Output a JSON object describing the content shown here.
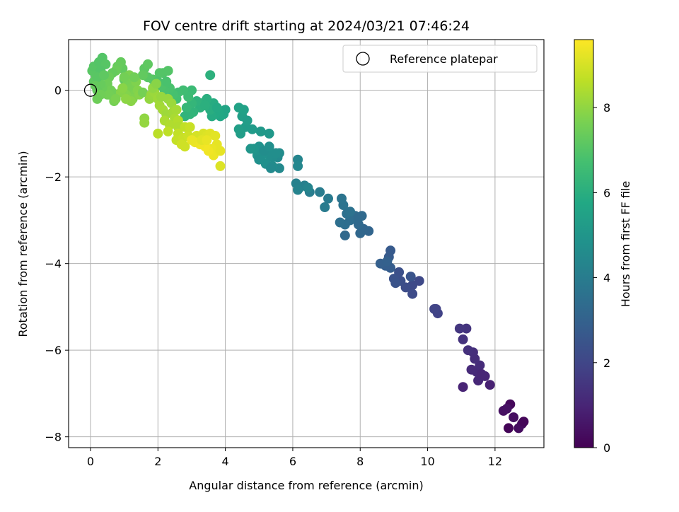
{
  "chart_data": {
    "type": "scatter",
    "title": "FOV centre drift starting at 2024/03/21 07:46:24",
    "xlabel": "Angular distance from reference (arcmin)",
    "ylabel": "Rotation from reference (arcmin)",
    "xlim": [
      -0.65,
      13.45
    ],
    "ylim": [
      -8.25,
      1.17
    ],
    "xticks": [
      "0",
      "2",
      "4",
      "6",
      "8",
      "10",
      "12"
    ],
    "yticks": [
      "−8",
      "−6",
      "−4",
      "−2",
      "0"
    ],
    "grid": true,
    "colormap": "viridis",
    "colorbar": {
      "label": "Hours from first FF file",
      "range": [
        0,
        9.6
      ],
      "ticks": [
        "0",
        "2",
        "4",
        "6",
        "8"
      ]
    },
    "legend": {
      "placement": "top-right",
      "entries": [
        {
          "label": "Reference platepar",
          "marker": "open-circle"
        }
      ]
    },
    "reference_point": {
      "x": 0,
      "y": 0
    },
    "points": [
      [
        12.45,
        -7.25,
        0.2
      ],
      [
        12.8,
        -7.7,
        0.25
      ],
      [
        12.7,
        -7.8,
        0.3
      ],
      [
        12.4,
        -7.8,
        0.1
      ],
      [
        12.55,
        -7.55,
        0.35
      ],
      [
        12.25,
        -7.4,
        0.4
      ],
      [
        12.85,
        -7.65,
        0.15
      ],
      [
        12.35,
        -7.35,
        0.45
      ],
      [
        11.85,
        -6.8,
        0.9
      ],
      [
        11.7,
        -6.6,
        1.0
      ],
      [
        11.5,
        -6.7,
        1.05
      ],
      [
        11.45,
        -6.5,
        1.1
      ],
      [
        11.3,
        -6.45,
        1.15
      ],
      [
        11.55,
        -6.35,
        1.2
      ],
      [
        11.4,
        -6.2,
        1.25
      ],
      [
        11.35,
        -6.05,
        1.3
      ],
      [
        11.2,
        -6.0,
        1.35
      ],
      [
        11.05,
        -5.75,
        1.4
      ],
      [
        11.15,
        -5.5,
        1.45
      ],
      [
        10.95,
        -5.5,
        1.5
      ],
      [
        11.05,
        -6.85,
        0.95
      ],
      [
        11.6,
        -6.55,
        1.02
      ],
      [
        10.25,
        -5.05,
        1.85
      ],
      [
        10.3,
        -5.15,
        1.9
      ],
      [
        10.2,
        -5.05,
        1.95
      ],
      [
        9.75,
        -4.4,
        2.1
      ],
      [
        9.55,
        -4.5,
        2.15
      ],
      [
        9.55,
        -4.7,
        2.2
      ],
      [
        9.35,
        -4.55,
        2.25
      ],
      [
        9.2,
        -4.4,
        2.3
      ],
      [
        9.15,
        -4.2,
        2.35
      ],
      [
        9.0,
        -4.35,
        2.4
      ],
      [
        9.05,
        -4.45,
        2.45
      ],
      [
        9.5,
        -4.3,
        2.5
      ],
      [
        8.9,
        -3.7,
        2.7
      ],
      [
        8.85,
        -3.85,
        2.75
      ],
      [
        8.9,
        -4.1,
        2.8
      ],
      [
        8.75,
        -4.05,
        2.85
      ],
      [
        8.6,
        -4.0,
        2.9
      ],
      [
        8.8,
        -3.95,
        2.95
      ],
      [
        8.25,
        -3.25,
        3.1
      ],
      [
        8.1,
        -3.2,
        3.15
      ],
      [
        8.0,
        -3.3,
        3.2
      ],
      [
        7.95,
        -3.1,
        3.25
      ],
      [
        8.05,
        -2.9,
        3.3
      ],
      [
        7.85,
        -2.9,
        3.35
      ],
      [
        7.7,
        -3.0,
        3.4
      ],
      [
        7.55,
        -3.1,
        3.45
      ],
      [
        7.4,
        -3.05,
        3.5
      ],
      [
        7.6,
        -2.85,
        3.55
      ],
      [
        7.55,
        -3.35,
        3.25
      ],
      [
        7.7,
        -2.8,
        3.6
      ],
      [
        7.5,
        -2.65,
        3.65
      ],
      [
        7.45,
        -2.5,
        3.7
      ],
      [
        7.95,
        -2.95,
        3.3
      ],
      [
        7.05,
        -2.5,
        3.9
      ],
      [
        6.95,
        -2.7,
        3.95
      ],
      [
        6.8,
        -2.35,
        4.0
      ],
      [
        6.5,
        -2.35,
        4.05
      ],
      [
        6.35,
        -2.2,
        4.1
      ],
      [
        6.2,
        -2.25,
        4.15
      ],
      [
        6.1,
        -2.15,
        4.2
      ],
      [
        6.15,
        -2.3,
        4.25
      ],
      [
        6.45,
        -2.25,
        4.3
      ],
      [
        6.15,
        -1.6,
        4.35
      ],
      [
        6.15,
        -1.75,
        4.4
      ],
      [
        5.6,
        -1.8,
        4.5
      ],
      [
        5.55,
        -1.55,
        4.55
      ],
      [
        5.6,
        -1.45,
        4.6
      ],
      [
        5.4,
        -1.55,
        4.65
      ],
      [
        5.3,
        -1.5,
        4.7
      ],
      [
        5.2,
        -1.7,
        4.75
      ],
      [
        5.1,
        -1.5,
        4.8
      ],
      [
        5.0,
        -1.3,
        4.85
      ],
      [
        4.95,
        -1.5,
        4.9
      ],
      [
        4.85,
        -1.35,
        4.95
      ],
      [
        5.4,
        -1.75,
        4.6
      ],
      [
        5.15,
        -1.4,
        4.65
      ],
      [
        5.3,
        -1.3,
        4.72
      ],
      [
        5.5,
        -1.45,
        4.68
      ],
      [
        4.75,
        -1.35,
        5.0
      ],
      [
        5.0,
        -1.6,
        4.78
      ],
      [
        5.35,
        -1.8,
        4.55
      ],
      [
        5.3,
        -1.0,
        5.1
      ],
      [
        5.05,
        -0.95,
        5.15
      ],
      [
        4.8,
        -0.9,
        5.2
      ],
      [
        4.6,
        -0.85,
        5.25
      ],
      [
        4.45,
        -1.0,
        5.3
      ],
      [
        4.4,
        -0.9,
        5.35
      ],
      [
        4.5,
        -0.6,
        5.4
      ],
      [
        4.55,
        -0.45,
        5.45
      ],
      [
        4.4,
        -0.4,
        5.5
      ],
      [
        4.65,
        -0.7,
        5.3
      ],
      [
        4.0,
        -0.45,
        5.6
      ],
      [
        3.95,
        -0.55,
        5.65
      ],
      [
        3.85,
        -0.6,
        5.7
      ],
      [
        3.8,
        -0.5,
        5.75
      ],
      [
        3.7,
        -0.55,
        5.8
      ],
      [
        3.6,
        -0.6,
        5.85
      ],
      [
        3.65,
        -0.3,
        5.9
      ],
      [
        3.55,
        -0.45,
        5.95
      ],
      [
        3.45,
        -0.2,
        6.0
      ],
      [
        3.3,
        -0.3,
        6.05
      ],
      [
        3.25,
        -0.4,
        6.1
      ],
      [
        3.15,
        -0.25,
        6.15
      ],
      [
        3.05,
        -0.5,
        6.2
      ],
      [
        2.95,
        -0.55,
        6.25
      ],
      [
        3.0,
        -0.3,
        6.3
      ],
      [
        2.85,
        -0.4,
        6.35
      ],
      [
        3.55,
        0.35,
        6.1
      ],
      [
        2.8,
        -0.6,
        6.2
      ],
      [
        3.4,
        -0.35,
        6.05
      ],
      [
        3.75,
        -0.4,
        5.82
      ],
      [
        3.0,
        0.0,
        6.5
      ],
      [
        2.9,
        -0.15,
        6.55
      ],
      [
        2.75,
        0.0,
        6.6
      ],
      [
        2.6,
        -0.05,
        6.65
      ],
      [
        2.55,
        -0.2,
        6.7
      ],
      [
        2.45,
        -0.1,
        6.75
      ],
      [
        2.35,
        0.05,
        6.8
      ],
      [
        2.2,
        0.0,
        6.85
      ],
      [
        2.1,
        0.1,
        6.9
      ],
      [
        2.15,
        0.4,
        6.95
      ],
      [
        2.3,
        0.45,
        7.0
      ],
      [
        1.85,
        0.25,
        7.05
      ],
      [
        1.7,
        0.3,
        7.1
      ],
      [
        1.6,
        0.5,
        7.15
      ],
      [
        1.7,
        0.6,
        7.2
      ],
      [
        1.55,
        0.35,
        7.25
      ],
      [
        2.05,
        0.4,
        7.0
      ],
      [
        2.0,
        0.2,
        6.9
      ],
      [
        2.25,
        0.2,
        6.8
      ],
      [
        1.0,
        0.25,
        7.2
      ],
      [
        0.95,
        0.5,
        7.25
      ],
      [
        0.9,
        0.65,
        7.3
      ],
      [
        0.8,
        0.55,
        7.35
      ],
      [
        0.75,
        0.45,
        7.4
      ],
      [
        0.65,
        0.4,
        7.3
      ],
      [
        0.55,
        0.3,
        7.4
      ],
      [
        0.5,
        0.15,
        7.45
      ],
      [
        0.6,
        0.0,
        7.5
      ],
      [
        0.5,
        -0.1,
        7.5
      ],
      [
        0.35,
        0.05,
        7.4
      ],
      [
        0.3,
        0.15,
        7.35
      ],
      [
        0.2,
        0.0,
        7.3
      ],
      [
        0.1,
        0.2,
        7.2
      ],
      [
        0.15,
        0.35,
        7.15
      ],
      [
        0.05,
        0.45,
        7.1
      ],
      [
        0.1,
        0.55,
        7.05
      ],
      [
        0.25,
        0.65,
        7.0
      ],
      [
        0.35,
        0.75,
        7.0
      ],
      [
        0.45,
        0.6,
        7.05
      ],
      [
        0.3,
        0.45,
        7.0
      ],
      [
        0.2,
        0.3,
        7.1
      ],
      [
        0.4,
        0.35,
        7.2
      ],
      [
        0.65,
        -0.05,
        7.5
      ],
      [
        0.7,
        -0.25,
        7.6
      ],
      [
        0.55,
        -0.1,
        7.55
      ],
      [
        0.3,
        -0.1,
        7.5
      ],
      [
        0.2,
        -0.2,
        7.45
      ],
      [
        0.15,
        0.1,
        7.3
      ],
      [
        1.1,
        0.15,
        7.6
      ],
      [
        1.2,
        0.05,
        7.65
      ],
      [
        1.3,
        -0.1,
        7.7
      ],
      [
        1.25,
        -0.2,
        7.75
      ],
      [
        1.05,
        -0.1,
        7.8
      ],
      [
        0.9,
        -0.05,
        7.85
      ],
      [
        0.95,
        0.05,
        7.9
      ],
      [
        1.15,
        0.35,
        7.7
      ],
      [
        1.35,
        0.2,
        7.75
      ],
      [
        1.4,
        0.0,
        7.8
      ],
      [
        1.45,
        -0.1,
        7.85
      ],
      [
        1.2,
        -0.25,
        7.9
      ],
      [
        1.05,
        -0.2,
        7.95
      ],
      [
        1.3,
        0.3,
        7.5
      ],
      [
        1.0,
        0.3,
        7.55
      ],
      [
        1.55,
        -0.05,
        7.6
      ],
      [
        0.75,
        -0.2,
        7.7
      ],
      [
        1.6,
        -0.65,
        8.0
      ],
      [
        1.6,
        -0.75,
        8.05
      ],
      [
        1.75,
        -0.2,
        8.05
      ],
      [
        1.8,
        -0.1,
        8.1
      ],
      [
        1.9,
        -0.05,
        8.15
      ],
      [
        2.0,
        -0.2,
        8.2
      ],
      [
        2.05,
        -0.35,
        8.25
      ],
      [
        2.15,
        -0.45,
        8.3
      ],
      [
        2.25,
        -0.55,
        8.2
      ],
      [
        2.3,
        -0.2,
        8.1
      ],
      [
        1.85,
        0.05,
        8.0
      ],
      [
        1.95,
        0.15,
        7.9
      ],
      [
        2.4,
        -0.3,
        8.15
      ],
      [
        2.45,
        -0.5,
        8.25
      ],
      [
        2.55,
        -0.45,
        8.3
      ],
      [
        2.5,
        -0.65,
        8.35
      ],
      [
        2.2,
        -0.7,
        8.4
      ],
      [
        2.35,
        -0.8,
        8.45
      ],
      [
        2.6,
        -0.7,
        8.5
      ],
      [
        2.6,
        -0.85,
        8.45
      ],
      [
        2.1,
        -0.15,
        8.1
      ],
      [
        2.0,
        -1.0,
        8.6
      ],
      [
        2.3,
        -0.95,
        8.65
      ],
      [
        2.6,
        -1.0,
        8.7
      ],
      [
        2.55,
        -1.15,
        8.75
      ],
      [
        2.75,
        -1.1,
        8.8
      ],
      [
        2.8,
        -0.85,
        8.7
      ],
      [
        2.9,
        -1.05,
        8.85
      ],
      [
        2.95,
        -0.85,
        8.8
      ],
      [
        2.7,
        -1.25,
        8.9
      ],
      [
        2.8,
        -1.3,
        8.9
      ],
      [
        3.15,
        -1.05,
        9.0
      ],
      [
        3.35,
        -1.0,
        9.05
      ],
      [
        3.45,
        -1.05,
        9.1
      ],
      [
        3.55,
        -1.0,
        9.15
      ],
      [
        3.7,
        -1.05,
        9.2
      ],
      [
        3.75,
        -1.25,
        9.25
      ],
      [
        3.6,
        -1.35,
        9.3
      ],
      [
        3.65,
        -1.5,
        9.35
      ],
      [
        3.5,
        -1.4,
        9.4
      ],
      [
        3.4,
        -1.3,
        9.45
      ],
      [
        3.25,
        -1.25,
        9.4
      ],
      [
        3.1,
        -1.2,
        9.35
      ],
      [
        3.0,
        -1.15,
        9.3
      ],
      [
        3.85,
        -1.4,
        9.25
      ],
      [
        3.85,
        -1.75,
        9.1
      ],
      [
        3.3,
        -1.15,
        9.2
      ],
      [
        3.45,
        -1.15,
        9.3
      ]
    ]
  }
}
